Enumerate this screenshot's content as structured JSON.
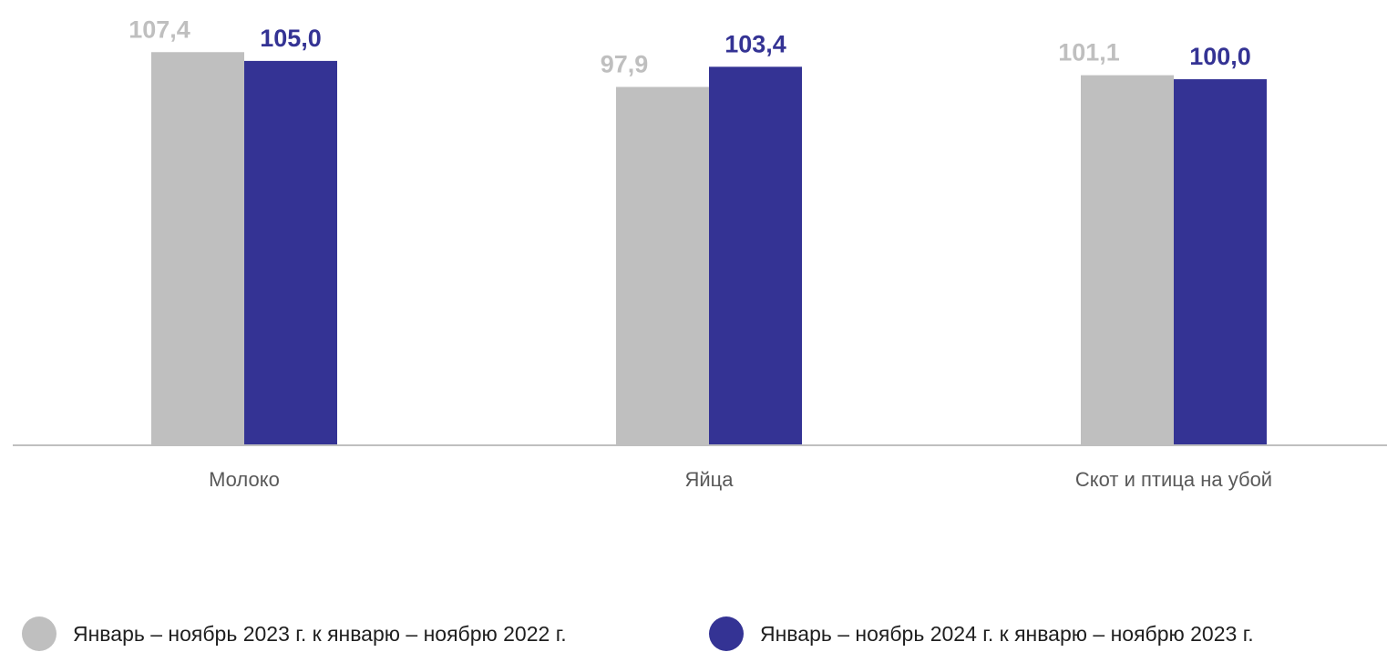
{
  "chart_data": {
    "type": "bar",
    "categories": [
      "Молоко",
      "Яйца",
      "Скот и птица на убой"
    ],
    "series": [
      {
        "name": "Январь – ноябрь 2023 г. к январю – ноябрю 2022 г.",
        "values": [
          107.4,
          97.9,
          101.1
        ],
        "labels": [
          "107,4",
          "97,9",
          "101,1"
        ],
        "color": "#bfbfbf"
      },
      {
        "name": "Январь – ноябрь 2024 г. к январю – ноябрю 2023 г.",
        "values": [
          105.0,
          103.4,
          100.0
        ],
        "labels": [
          "105,0",
          "103,4",
          "100,0"
        ],
        "color": "#343394"
      }
    ],
    "grid": false,
    "legend_position": "bottom",
    "axis_color": "#bfbfbf"
  }
}
